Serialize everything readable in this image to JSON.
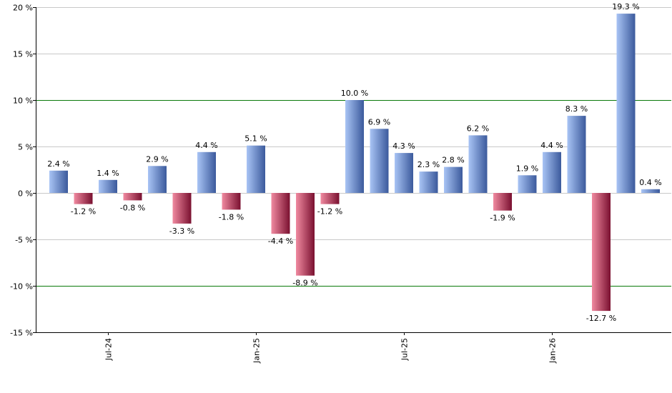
{
  "chart_data": {
    "type": "bar",
    "y_unit": "%",
    "ylim": [
      -15,
      20
    ],
    "y_ticks": [
      20,
      15,
      10,
      5,
      0,
      -5,
      -10,
      -15
    ],
    "y_tick_labels": [
      "20 %",
      "15 %",
      "10 %",
      "5 %",
      "0 %",
      "-5 %",
      "-10 %",
      "-15 %"
    ],
    "reference_lines": [
      10,
      -10
    ],
    "x_tick_labels": [
      {
        "label": "Jul-24",
        "at_bar": 2
      },
      {
        "label": "Jan-25",
        "at_bar": 8
      },
      {
        "label": "Jul-25",
        "at_bar": 14
      },
      {
        "label": "Jan-26",
        "at_bar": 20
      }
    ],
    "values": [
      2.4,
      -1.2,
      1.4,
      -0.8,
      2.9,
      -3.3,
      4.4,
      -1.8,
      5.1,
      -4.4,
      -8.9,
      -1.2,
      10.0,
      6.9,
      4.3,
      2.3,
      2.8,
      6.2,
      -1.9,
      1.9,
      4.4,
      8.3,
      -12.7,
      19.3,
      0.4
    ],
    "value_labels": [
      "2.4 %",
      "-1.2 %",
      "1.4 %",
      "-0.8 %",
      "2.9 %",
      "-3.3 %",
      "4.4 %",
      "-1.8 %",
      "5.1 %",
      "-4.4 %",
      "-8.9 %",
      "-1.2 %",
      "10.0 %",
      "6.9 %",
      "4.3 %",
      "2.3 %",
      "2.8 %",
      "6.2 %",
      "-1.9 %",
      "1.9 %",
      "4.4 %",
      "8.3 %",
      "-12.7 %",
      "19.3 %",
      "0.4 %"
    ],
    "grid": true,
    "colors": {
      "positive_light": "#a9c4f5",
      "positive_dark": "#3b5a9c",
      "negative_light": "#f08aa0",
      "negative_dark": "#7a1030",
      "grid": "#c8c8c8",
      "reference_line": "#0a7a0a",
      "axis": "#000000"
    }
  }
}
